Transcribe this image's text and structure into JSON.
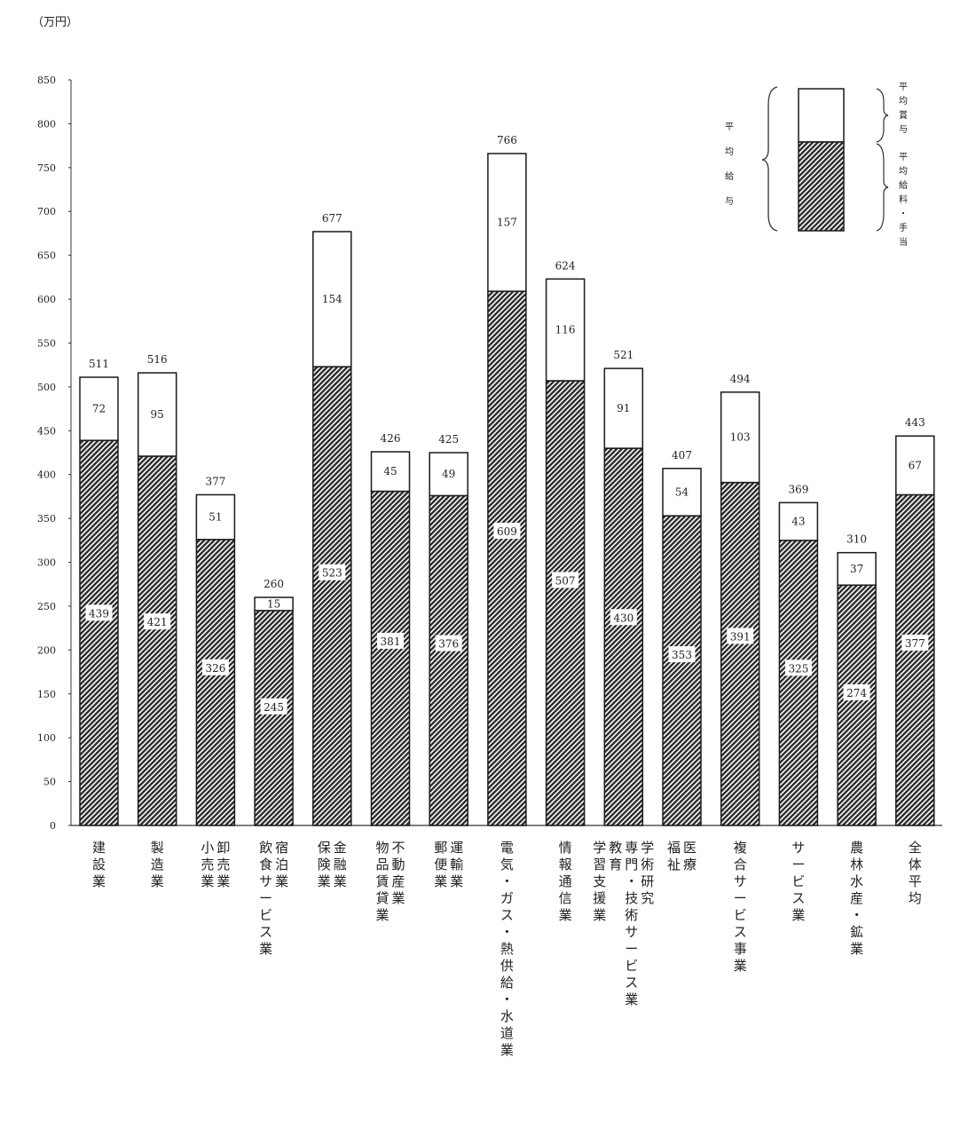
{
  "chart_data": {
    "type": "bar",
    "stacked": true,
    "unit_label": "（万円）",
    "ylim": [
      0,
      850
    ],
    "yticks": [
      0,
      50,
      100,
      150,
      200,
      250,
      300,
      350,
      400,
      450,
      500,
      550,
      600,
      650,
      700,
      750,
      800,
      850
    ],
    "categories": [
      [
        "建設業"
      ],
      [
        "製造業"
      ],
      [
        "卸売業",
        "小売業"
      ],
      [
        "宿泊業",
        "飲食サービス業"
      ],
      [
        "金融業",
        "保険業"
      ],
      [
        "不動産業",
        "物品賃貸業"
      ],
      [
        "運輸業",
        "郵便業"
      ],
      [
        "電気・ガス・熱供給・水道業"
      ],
      [
        "情報通信業"
      ],
      [
        "学術研究",
        "専門・技術サービス業",
        "教育",
        "学習支援業"
      ],
      [
        "医療",
        "福祉"
      ],
      [
        "複合サービス事業"
      ],
      [
        "サービス業"
      ],
      [
        "農林水産・鉱業"
      ],
      [
        "全体平均"
      ]
    ],
    "series": [
      {
        "name": "平均給料・手当",
        "values": [
          439,
          421,
          326,
          245,
          523,
          381,
          376,
          609,
          507,
          430,
          353,
          391,
          325,
          274,
          377
        ]
      },
      {
        "name": "平均賞与",
        "values": [
          72,
          95,
          51,
          15,
          154,
          45,
          49,
          157,
          116,
          91,
          54,
          103,
          43,
          37,
          67
        ]
      }
    ],
    "totals": [
      511,
      516,
      377,
      260,
      677,
      426,
      425,
      766,
      624,
      521,
      407,
      494,
      369,
      310,
      443
    ],
    "legend": {
      "position": "top-right",
      "group_label": "平均給与",
      "bonus_label": "平均賞与",
      "salary_label": "平均給料・手当"
    }
  }
}
